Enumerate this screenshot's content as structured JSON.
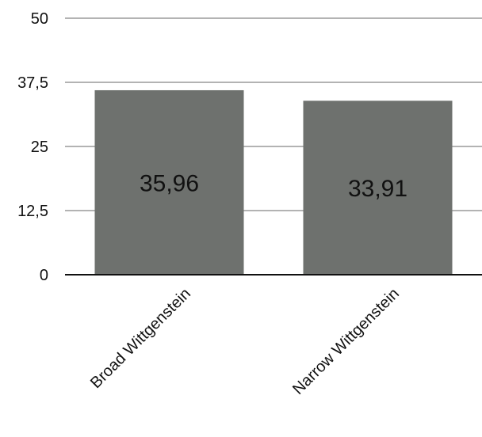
{
  "chart_data": {
    "type": "bar",
    "title": "",
    "xlabel": "",
    "ylabel": "",
    "categories": [
      "Broad Wittgenstein",
      "Narrow Wittgenstein"
    ],
    "values": [
      35.96,
      33.91
    ],
    "data_labels": [
      "35,96",
      "33,91"
    ],
    "ylim": [
      0,
      50
    ],
    "y_ticks": [
      0,
      12.5,
      25,
      37.5,
      50
    ],
    "y_tick_labels": [
      "0",
      "12,5",
      "25",
      "37,5",
      "50"
    ],
    "grid": true,
    "legend": "none",
    "colors": {
      "bar": "#6e716e",
      "grid": "#b3b3b3",
      "axis": "#111111"
    }
  }
}
